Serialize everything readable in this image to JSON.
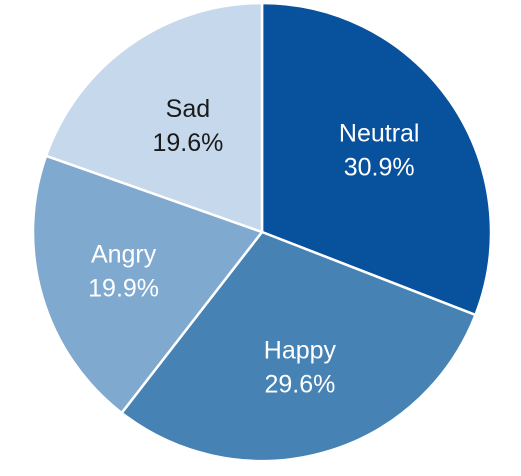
{
  "chart_data": {
    "type": "pie",
    "title": "",
    "start_angle_deg": 90,
    "direction": "clockwise",
    "slices": [
      {
        "label": "Neutral",
        "value": 30.9,
        "value_label": "30.9%",
        "color": "#08519c",
        "text_color": "#ffffff"
      },
      {
        "label": "Happy",
        "value": 29.6,
        "value_label": "29.6%",
        "color": "#4682b4",
        "text_color": "#ffffff"
      },
      {
        "label": "Angry",
        "value": 19.9,
        "value_label": "19.9%",
        "color": "#7fa9cf",
        "text_color": "#ffffff"
      },
      {
        "label": "Sad",
        "value": 19.6,
        "value_label": "19.6%",
        "color": "#c6d9ec",
        "text_color": "#1a1a1a"
      }
    ]
  }
}
